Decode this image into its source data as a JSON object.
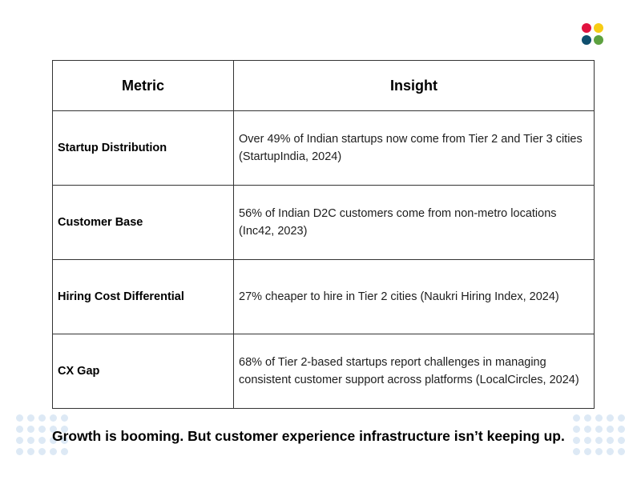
{
  "brand": {
    "logo_icon": "four-dot-logo-icon",
    "colors": [
      "#e1133f",
      "#f7cc14",
      "#0f4f6e",
      "#5da13f"
    ]
  },
  "table": {
    "headers": {
      "metric": "Metric",
      "insight": "Insight"
    },
    "rows": [
      {
        "metric": "Startup Distribution",
        "insight": "Over 49% of Indian startups now come from Tier 2 and Tier 3 cities (StartupIndia, 2024)"
      },
      {
        "metric": "Customer Base",
        "insight": "56% of Indian D2C customers come from non-metro locations (Inc42, 2023)"
      },
      {
        "metric": "Hiring Cost Differential",
        "insight": "27% cheaper to hire in Tier 2 cities (Naukri Hiring Index, 2024)"
      },
      {
        "metric": "CX Gap",
        "insight": "68% of Tier 2-based startups report challenges in managing consistent customer support across platforms (LocalCircles, 2024)"
      }
    ]
  },
  "tagline": "Growth is booming. But customer experience infrastructure isn’t keeping up."
}
